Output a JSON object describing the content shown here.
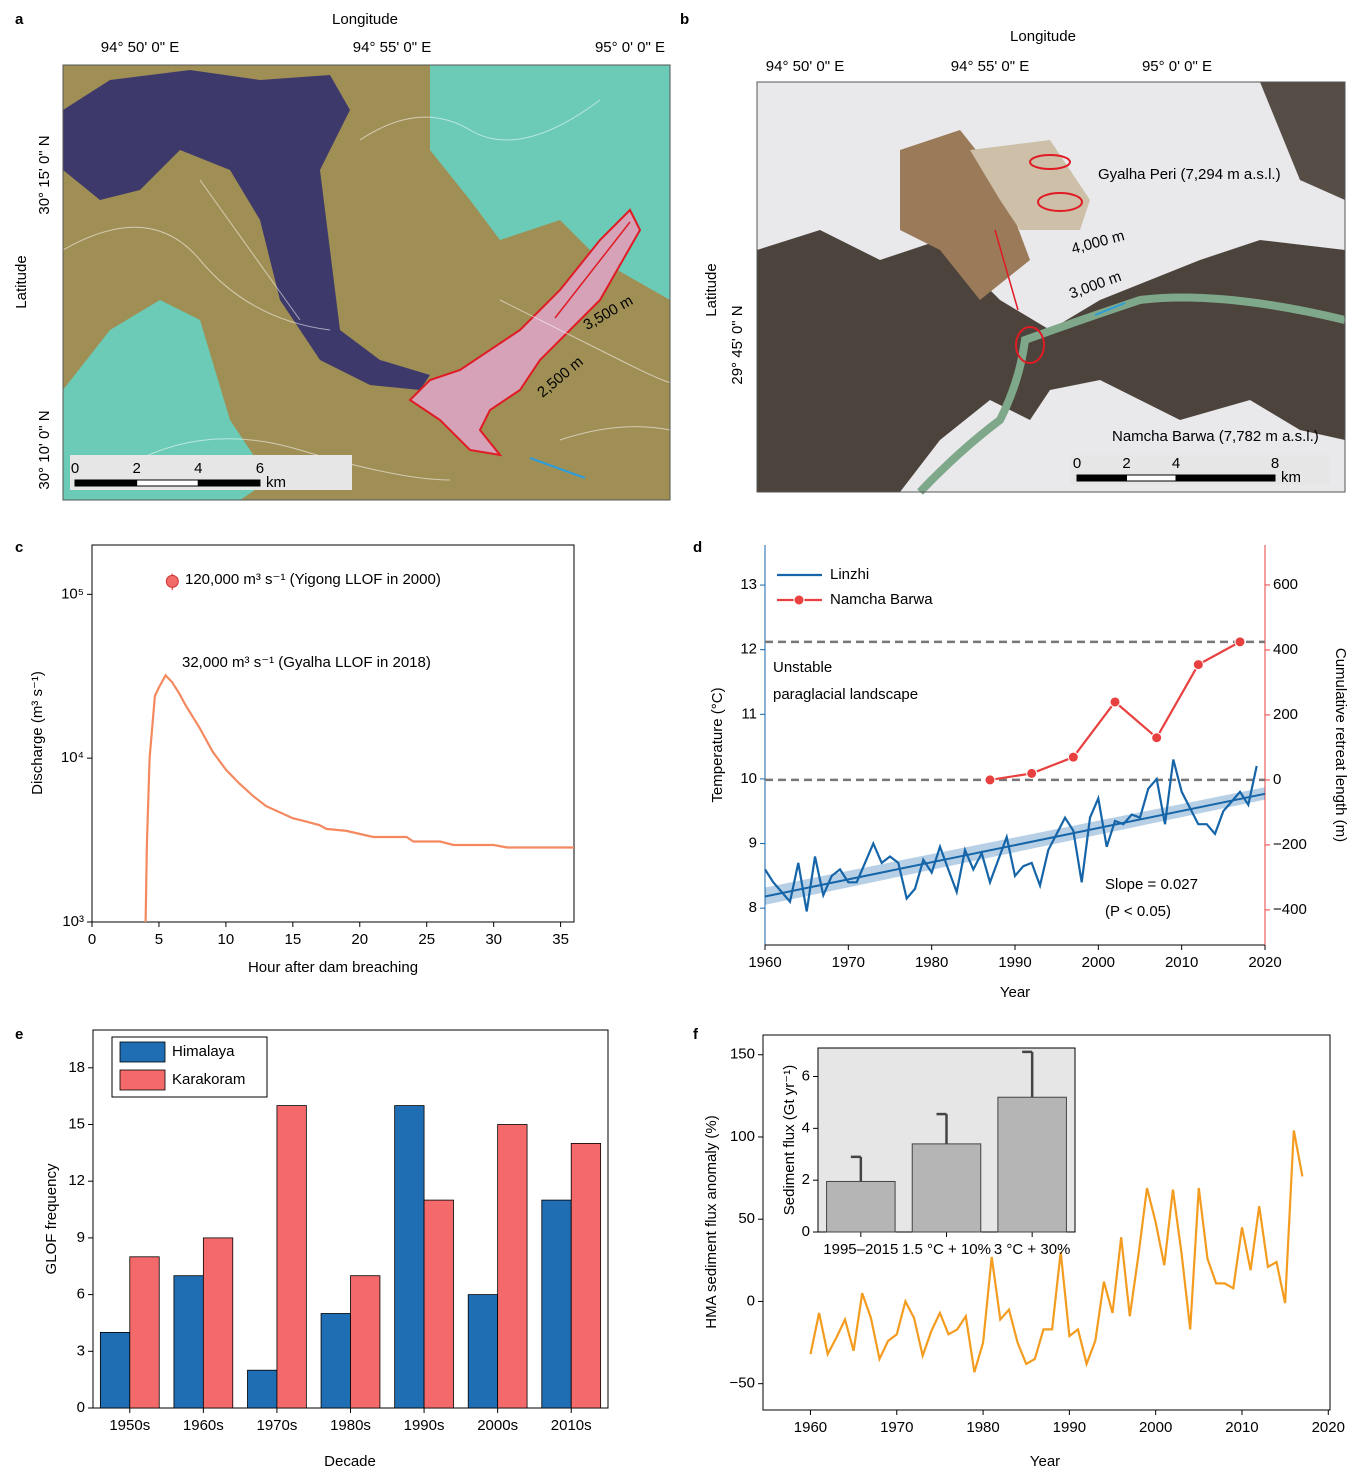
{
  "chart_data": [
    {
      "type": "map",
      "panel": "a",
      "x_axis_label": "Longitude",
      "y_axis_label": "Latitude",
      "x_labels": [
        "94° 50' 0\" E",
        "94° 55' 0\" E",
        "95° 0' 0\" E"
      ],
      "y_labels": [
        "30° 15' 0\" N",
        "30° 10' 0\" N"
      ],
      "annotations": [
        "3,500 m",
        "2,500 m"
      ],
      "scale_bar": {
        "ticks": [
          0,
          2,
          4,
          6
        ],
        "unit": "km"
      }
    },
    {
      "type": "map",
      "panel": "b",
      "x_axis_label": "Longitude",
      "y_axis_label": "Latitude",
      "x_labels": [
        "94° 50' 0\" E",
        "94° 55' 0\" E",
        "95° 0' 0\" E"
      ],
      "y_labels": [
        "29° 45' 0\" N"
      ],
      "annotations": [
        "Gyalha Peri (7,294 m a.s.l.)",
        "4,000 m",
        "3,000 m",
        "Namcha Barwa (7,782 m a.s.l.)"
      ],
      "scale_bar": {
        "ticks": [
          0,
          2,
          4,
          8
        ],
        "unit": "km"
      }
    },
    {
      "type": "line",
      "panel": "c",
      "x_label": "Hour after dam breaching",
      "y_label": "Discharge (m³ s⁻¹)",
      "log_y": true,
      "xlim": [
        0,
        36
      ],
      "xticks": [
        0,
        5,
        10,
        15,
        20,
        25,
        30,
        35
      ],
      "ylim": [
        1000,
        200000
      ],
      "yticks": [
        {
          "value": 1000,
          "label": "10³"
        },
        {
          "value": 10000,
          "label": "10⁴"
        },
        {
          "value": 100000,
          "label": "10⁵"
        }
      ],
      "series": [
        {
          "color": "#f4895f",
          "x": [
            4,
            4.1,
            4.3,
            4.7,
            5,
            5.5,
            6,
            6.5,
            7,
            8,
            9,
            10,
            11,
            12,
            13,
            15,
            16,
            17,
            17.5,
            19,
            21,
            23.5,
            24,
            26,
            27,
            30,
            31,
            36
          ],
          "values": [
            1000,
            3000,
            10000,
            24000,
            27000,
            32000,
            29000,
            25000,
            21000,
            15500,
            11000,
            8500,
            7000,
            5900,
            5100,
            4300,
            4100,
            3900,
            3700,
            3600,
            3300,
            3300,
            3100,
            3100,
            2950,
            2950,
            2850,
            2850
          ]
        }
      ],
      "points": [
        {
          "x": 6,
          "value": 120000,
          "error": 14000,
          "color": "#f26b6b"
        }
      ],
      "annotations": [
        "120,000 m³ s⁻¹ (Yigong LLOF in 2000)",
        "32,000 m³ s⁻¹ (Gyalha LLOF in 2018)"
      ]
    },
    {
      "type": "line",
      "panel": "d",
      "x_label": "Year",
      "y_label": "Temperature (°C)",
      "y2_label": "Cumulative retreat length (m)",
      "xlim": [
        1960,
        2020
      ],
      "xticks": [
        1960,
        1970,
        1980,
        1990,
        2000,
        2010,
        2020
      ],
      "ylim": [
        7.43,
        13.62
      ],
      "yticks": [
        8,
        9,
        10,
        11,
        12,
        13
      ],
      "y2lim": [
        -508,
        723
      ],
      "y2ticks": [
        {
          "value": -400,
          "label": "−400"
        },
        {
          "value": -200,
          "label": "−200"
        },
        0,
        200,
        400,
        600
      ],
      "legend": "upper left",
      "series": [
        {
          "name": "Linzhi",
          "color": "#1565a8",
          "x": [
            1960,
            1961,
            1962,
            1963,
            1964,
            1965,
            1966,
            1967,
            1968,
            1969,
            1970,
            1971,
            1972,
            1973,
            1974,
            1975,
            1976,
            1977,
            1978,
            1979,
            1980,
            1981,
            1982,
            1983,
            1984,
            1985,
            1986,
            1987,
            1988,
            1989,
            1990,
            1991,
            1992,
            1993,
            1994,
            1995,
            1996,
            1997,
            1998,
            1999,
            2000,
            2001,
            2002,
            2003,
            2004,
            2005,
            2006,
            2007,
            2008,
            2009,
            2010,
            2011,
            2012,
            2013,
            2014,
            2015,
            2016,
            2017,
            2018,
            2019
          ],
          "values": [
            8.6,
            8.4,
            8.25,
            8.1,
            8.7,
            7.95,
            8.8,
            8.2,
            8.5,
            8.6,
            8.4,
            8.4,
            8.7,
            9.0,
            8.7,
            8.8,
            8.7,
            8.15,
            8.3,
            8.75,
            8.55,
            8.95,
            8.6,
            8.25,
            8.9,
            8.6,
            8.85,
            8.4,
            8.75,
            9.1,
            8.5,
            8.65,
            8.7,
            8.35,
            8.9,
            9.15,
            9.4,
            9.2,
            8.4,
            9.4,
            9.7,
            8.95,
            9.35,
            9.3,
            9.45,
            9.4,
            9.85,
            10.0,
            9.3,
            10.3,
            9.8,
            9.55,
            9.3,
            9.3,
            9.15,
            9.5,
            9.65,
            9.8,
            9.6,
            10.2
          ]
        },
        {
          "name": "Namcha Barwa",
          "color": "#e8403f",
          "axis": "y2",
          "marker": "o",
          "x": [
            1987,
            1992,
            1997,
            2002,
            2007,
            2012,
            2017
          ],
          "values": [
            0,
            20,
            70,
            240,
            130,
            355,
            425
          ]
        }
      ],
      "trend": {
        "color": "#1565a8",
        "x": [
          1960,
          2020
        ],
        "values": [
          8.18,
          9.77
        ],
        "lower": [
          8.05,
          9.68
        ],
        "upper": [
          8.32,
          9.87
        ]
      },
      "reference_lines_y2": [
        0,
        425
      ],
      "annotations": [
        "Unstable",
        "paraglacial landscape",
        "Slope = 0.027",
        "(P < 0.05)"
      ]
    },
    {
      "type": "bar",
      "panel": "e",
      "x_label": "Decade",
      "y_label": "GLOF frequency",
      "categories": [
        "1950s",
        "1960s",
        "1970s",
        "1980s",
        "1990s",
        "2000s",
        "2010s"
      ],
      "ylim": [
        0,
        20
      ],
      "yticks": [
        0,
        3,
        6,
        9,
        12,
        15,
        18
      ],
      "legend": "upper left",
      "series": [
        {
          "name": "Himalaya",
          "color": "#1f6db3",
          "values": [
            4,
            7,
            2,
            5,
            16,
            6,
            11
          ]
        },
        {
          "name": "Karakoram",
          "color": "#f46a6a",
          "values": [
            8,
            9,
            16,
            7,
            11,
            15,
            14
          ]
        }
      ]
    },
    {
      "type": "line",
      "panel": "f",
      "x_label": "Year",
      "y_label": "HMA sediment flux anomaly (%)",
      "xlim": [
        1954.5,
        2020.2
      ],
      "xticks": [
        1960,
        1970,
        1980,
        1990,
        2000,
        2010,
        2020
      ],
      "ylim": [
        -66,
        162
      ],
      "yticks": [
        {
          "value": -50,
          "label": "−50"
        },
        0,
        50,
        100,
        150
      ],
      "series": [
        {
          "color": "#f39c1f",
          "x": [
            1960,
            1961,
            1962,
            1963,
            1964,
            1965,
            1966,
            1967,
            1968,
            1969,
            1970,
            1971,
            1972,
            1973,
            1974,
            1975,
            1976,
            1977,
            1978,
            1979,
            1980,
            1981,
            1982,
            1983,
            1984,
            1985,
            1986,
            1987,
            1988,
            1989,
            1990,
            1991,
            1992,
            1993,
            1994,
            1995,
            1996,
            1997,
            1998,
            1999,
            2000,
            2001,
            2002,
            2003,
            2004,
            2005,
            2006,
            2007,
            2008,
            2009,
            2010,
            2011,
            2012,
            2013,
            2014,
            2015,
            2016,
            2017
          ],
          "values": [
            -32,
            -7,
            -32,
            -22,
            -11,
            -30,
            5,
            -10,
            -35,
            -24,
            -20,
            0,
            -10,
            -33,
            -18,
            -7,
            -20,
            -17,
            -9,
            -43,
            -25,
            27,
            -11,
            -5,
            -25,
            -38,
            -35,
            -17,
            -17,
            30,
            -21,
            -17,
            -38,
            -24,
            12,
            -7,
            39,
            -9,
            28,
            69,
            48,
            22,
            68,
            29,
            -17,
            69,
            26,
            11,
            11,
            8,
            45,
            19,
            58,
            21,
            24,
            -1,
            104,
            76
          ]
        }
      ]
    },
    {
      "type": "bar",
      "y_label": "Sediment flux (Gt yr⁻¹)",
      "background": "#e6e6e6",
      "categories": [
        "1995–2015",
        "1.5 °C + 10%",
        "3 °C + 30%"
      ],
      "ylim": [
        0,
        7.1
      ],
      "yticks": [
        0,
        2,
        4,
        6
      ],
      "color": "#b5b5b5",
      "values": [
        1.95,
        3.4,
        5.2
      ],
      "errors": [
        0.95,
        1.15,
        1.75
      ]
    }
  ]
}
